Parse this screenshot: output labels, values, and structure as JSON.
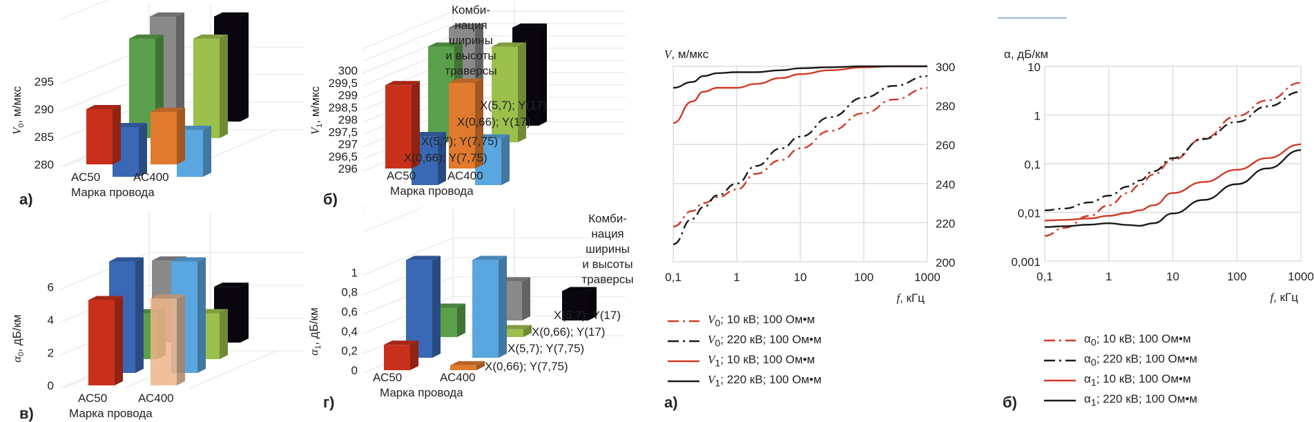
{
  "chart_data": [
    {
      "id": "a-3d",
      "type": "bar",
      "panel_label": "а)",
      "title": "",
      "ylabel": "V0, м/мкс",
      "xlabel": "Марка провода",
      "ylim": [
        280,
        300
      ],
      "yticks": [
        "280",
        "285",
        "290",
        "295"
      ],
      "categories": [
        "АС50",
        "АС400"
      ],
      "series": [
        {
          "name": "X(0,66); Y(7,75)",
          "values": [
            290,
            289.5
          ]
        },
        {
          "name": "X(5,7); Y(7,75)",
          "values": [
            289,
            288.5
          ]
        },
        {
          "name": "X(0,66); Y(17)",
          "values": [
            298,
            298
          ]
        },
        {
          "name": "X(5,7); Y(17)",
          "values": [
            299,
            299
          ]
        }
      ]
    },
    {
      "id": "b-3d",
      "type": "bar",
      "panel_label": "б)",
      "title": "",
      "ylabel": "V1, м/мкс",
      "xlabel": "Марка провода",
      "ylim": [
        296,
        300
      ],
      "yticks": [
        "296",
        "296,5",
        "297",
        "297,5",
        "298",
        "298,5",
        "299",
        "299,5",
        "300"
      ],
      "categories": [
        "АС50",
        "АС400"
      ],
      "legend_title": "Комби-нация ширины и высоты траверсы",
      "series": [
        {
          "name": "X(0,66); Y(7,75)",
          "values": [
            299.4,
            299.5
          ]
        },
        {
          "name": "X(5,7); Y(7,75)",
          "values": [
            298.0,
            297.9
          ]
        },
        {
          "name": "X(0,66); Y(17)",
          "values": [
            299.9,
            299.9
          ]
        },
        {
          "name": "X(5,7); Y(17)",
          "values": [
            300.0,
            300.0
          ]
        }
      ]
    },
    {
      "id": "v-3d",
      "type": "bar",
      "panel_label": "в)",
      "title": "",
      "ylabel": "α0, дБ/км",
      "xlabel": "Марка провода",
      "ylim": [
        0,
        8
      ],
      "yticks": [
        "0",
        "2",
        "4",
        "6"
      ],
      "categories": [
        "АС50",
        "АС400"
      ],
      "series": [
        {
          "name": "X(0,66); Y(7,75)",
          "values": [
            5.2,
            5.3
          ]
        },
        {
          "name": "X(5,7); Y(7,75)",
          "values": [
            6.8,
            6.8
          ]
        },
        {
          "name": "X(0,66); Y(17)",
          "values": [
            2.8,
            2.8
          ]
        },
        {
          "name": "X(5,7); Y(17)",
          "values": [
            5.0,
            3.4
          ]
        }
      ]
    },
    {
      "id": "g-3d",
      "type": "bar",
      "panel_label": "г)",
      "title": "",
      "ylabel": "α1, дБ/км",
      "xlabel": "Марка провода",
      "ylim": [
        0,
        1.2
      ],
      "yticks": [
        "0",
        "0,2",
        "0,4",
        "0,6",
        "0,8",
        "1"
      ],
      "categories": [
        "АС50",
        "АС400"
      ],
      "legend_title": "Комби-нация ширины и высоты траверсы",
      "series": [
        {
          "name": "X(0,66); Y(7,75)",
          "values": [
            0.26,
            0.05
          ]
        },
        {
          "name": "X(5,7); Y(7,75)",
          "values": [
            1.0,
            1.0
          ]
        },
        {
          "name": "X(0,66); Y(17)",
          "values": [
            0.3,
            0.08
          ]
        },
        {
          "name": "X(5,7); Y(17)",
          "values": [
            0.4,
            0.3
          ]
        }
      ]
    },
    {
      "id": "a-line",
      "type": "line",
      "panel_label": "а)",
      "ylabel": "V, м/мкс",
      "xlabel": "f, кГц",
      "xscale": "log",
      "xlim": [
        0.1,
        1000
      ],
      "ylim": [
        200,
        300
      ],
      "xticks": [
        "0,1",
        "1",
        "10",
        "100",
        "1000"
      ],
      "yticks": [
        "200",
        "220",
        "240",
        "260",
        "280",
        "300"
      ],
      "grid": true,
      "legend_position": "bottom",
      "x": [
        0.1,
        0.2,
        0.3,
        0.5,
        1,
        2,
        5,
        10,
        30,
        100,
        300,
        1000
      ],
      "series": [
        {
          "name": "V0; 10 кВ; 100 Ом•м",
          "style": "dashdot",
          "color": "#d03a22",
          "values": [
            218,
            226,
            230,
            233,
            237,
            245,
            252,
            258,
            267,
            276,
            283,
            289
          ]
        },
        {
          "name": "V0; 220 кВ; 100 Ом•м",
          "style": "dashdot",
          "color": "#1a1a1a",
          "values": [
            209,
            222,
            228,
            234,
            240,
            249,
            258,
            264,
            274,
            284,
            290,
            295
          ]
        },
        {
          "name": "V1; 10 кВ; 100 Ом•м",
          "style": "solid",
          "color": "#d03a22",
          "values": [
            271,
            282,
            287,
            289,
            289,
            291,
            294,
            296,
            298,
            299.5,
            300,
            300
          ]
        },
        {
          "name": "V1; 220 кВ; 100 Ом•м",
          "style": "solid",
          "color": "#1a1a1a",
          "values": [
            289,
            292,
            295,
            296.5,
            297,
            297,
            298,
            299,
            299.5,
            300,
            300,
            300
          ]
        }
      ],
      "legend_name_parts": [
        {
          "sym": "V",
          "sub": "0",
          "rest": "; 10 кВ; 100 Ом•м"
        },
        {
          "sym": "V",
          "sub": "0",
          "rest": "; 220 кВ; 100 Ом•м"
        },
        {
          "sym": "V",
          "sub": "1",
          "rest": "; 10 кВ; 100 Ом•м"
        },
        {
          "sym": "V",
          "sub": "1",
          "rest": "; 220 кВ; 100 Ом•м"
        }
      ]
    },
    {
      "id": "b-line",
      "type": "line",
      "panel_label": "б)",
      "ylabel": "α, дБ/км",
      "xlabel": "f, кГц",
      "xscale": "log",
      "yscale": "log",
      "xlim": [
        0.1,
        1000
      ],
      "ylim": [
        0.001,
        10
      ],
      "xticks": [
        "0,1",
        "1",
        "10",
        "100",
        "1000"
      ],
      "yticks": [
        "0,001",
        "0,01",
        "0,1",
        "1",
        "10"
      ],
      "grid": true,
      "legend_position": "bottom",
      "x": [
        0.1,
        0.2,
        0.5,
        1,
        2,
        3,
        5,
        10,
        30,
        100,
        300,
        1000
      ],
      "series": [
        {
          "name": "α0; 10 кВ; 100 Ом•м",
          "style": "dashdot",
          "color": "#d03a22",
          "values": [
            0.0033,
            0.0048,
            0.0085,
            0.014,
            0.025,
            0.036,
            0.06,
            0.12,
            0.33,
            0.95,
            2.0,
            4.6
          ]
        },
        {
          "name": "α0; 220 кВ; 100 Ом•м",
          "style": "dashdot",
          "color": "#1a1a1a",
          "values": [
            0.011,
            0.012,
            0.016,
            0.022,
            0.034,
            0.045,
            0.07,
            0.13,
            0.32,
            0.72,
            1.5,
            3.0
          ]
        },
        {
          "name": "α1; 10 кВ; 100 Ом•м",
          "style": "solid",
          "color": "#d03a22",
          "values": [
            0.0068,
            0.007,
            0.0075,
            0.0085,
            0.0098,
            0.011,
            0.014,
            0.025,
            0.042,
            0.075,
            0.13,
            0.25
          ]
        },
        {
          "name": "α1; 220 кВ; 100 Ом•м",
          "style": "solid",
          "color": "#1a1a1a",
          "values": [
            0.005,
            0.0052,
            0.0056,
            0.006,
            0.0055,
            0.0053,
            0.006,
            0.0095,
            0.018,
            0.038,
            0.08,
            0.19
          ]
        }
      ],
      "legend_name_parts": [
        {
          "sym": "α",
          "sub": "0",
          "rest": "; 10 кВ; 100 Ом•м"
        },
        {
          "sym": "α",
          "sub": "0",
          "rest": "; 220 кВ; 100 Ом•м"
        },
        {
          "sym": "α",
          "sub": "1",
          "rest": "; 10 кВ; 100 Ом•м"
        },
        {
          "sym": "α",
          "sub": "1",
          "rest": "; 220 кВ; 100 Ом•м"
        }
      ]
    }
  ],
  "colors": {
    "red": "#c8301c",
    "blue": "#3a68b4",
    "green": "#5aa04a",
    "gray": "#8a8a8a",
    "orange": "#e07a2e",
    "light_blue": "#5aa6e0",
    "light_green": "#9bc04c",
    "black": "#0a0610",
    "peach": "#f0b48a"
  }
}
